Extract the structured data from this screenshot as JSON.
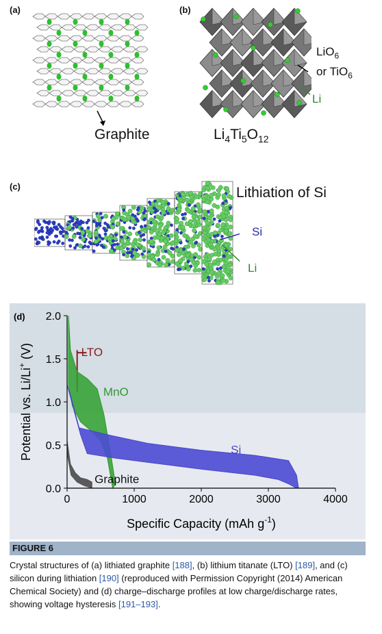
{
  "panel_a": {
    "label": "(a)",
    "name": "Graphite"
  },
  "panel_b": {
    "label": "(b)",
    "formula": {
      "li": "Li",
      "li_sub": "4",
      "ti": "Ti",
      "ti_sub": "5",
      "o": "O",
      "o_sub": "12"
    },
    "octa_label_1": "LiO",
    "octa_sub_1": "6",
    "octa_label_2": "or TiO",
    "octa_sub_2": "6",
    "li_label": "Li"
  },
  "panel_c": {
    "label": "(c)",
    "title": "Lithiation of Si",
    "si_label": "Si",
    "li_label": "Li"
  },
  "panel_d": {
    "label": "(d)"
  },
  "colors": {
    "lto": "#8b1a1a",
    "mno": "#2e9a2e",
    "si": "#4747c8",
    "graphite": "#555555",
    "plot_bg": "#c9d3de"
  },
  "chart_data": {
    "type": "area",
    "xlabel": "Specific Capacity (mAh g",
    "xlabel_sup": "-1",
    "xlabel_end": ")",
    "ylabel": "Potential vs. Li/Li",
    "ylabel_sup": "+",
    "ylabel_end": " (V)",
    "xlim": [
      0,
      4000
    ],
    "ylim": [
      0,
      2.0
    ],
    "xticks": [
      "0",
      "1000",
      "2000",
      "3000",
      "4000"
    ],
    "yticks": [
      "0.0",
      "0.5",
      "1.0",
      "1.5",
      "2.0"
    ],
    "series": [
      {
        "name": "Graphite",
        "upper": [
          [
            0,
            0.55
          ],
          [
            50,
            0.28
          ],
          [
            120,
            0.18
          ],
          [
            200,
            0.12
          ],
          [
            300,
            0.1
          ],
          [
            370,
            0.07
          ]
        ],
        "lower": [
          [
            0,
            0.4
          ],
          [
            60,
            0.15
          ],
          [
            150,
            0.07
          ],
          [
            250,
            0.03
          ],
          [
            370,
            0.0
          ]
        ]
      },
      {
        "name": "LTO",
        "upper": [
          [
            150,
            1.58
          ],
          [
            170,
            1.58
          ]
        ],
        "lower": [
          [
            150,
            1.55
          ],
          [
            170,
            1.55
          ]
        ]
      },
      {
        "name": "MnO",
        "upper": [
          [
            20,
            2.0
          ],
          [
            50,
            1.6
          ],
          [
            150,
            1.35
          ],
          [
            300,
            1.27
          ],
          [
            450,
            1.15
          ],
          [
            550,
            0.85
          ],
          [
            650,
            0.4
          ],
          [
            720,
            0.05
          ]
        ],
        "lower": [
          [
            20,
            1.2
          ],
          [
            80,
            0.95
          ],
          [
            200,
            0.77
          ],
          [
            350,
            0.67
          ],
          [
            500,
            0.55
          ],
          [
            600,
            0.35
          ],
          [
            680,
            0.0
          ]
        ]
      },
      {
        "name": "Si",
        "upper": [
          [
            0,
            1.2
          ],
          [
            60,
            1.05
          ],
          [
            180,
            0.7
          ],
          [
            600,
            0.62
          ],
          [
            1200,
            0.52
          ],
          [
            2000,
            0.44
          ],
          [
            2800,
            0.38
          ],
          [
            3300,
            0.32
          ],
          [
            3420,
            0.15
          ],
          [
            3450,
            0.0
          ]
        ],
        "lower": [
          [
            200,
            0.62
          ],
          [
            300,
            0.4
          ],
          [
            700,
            0.35
          ],
          [
            1200,
            0.3
          ],
          [
            2000,
            0.22
          ],
          [
            2800,
            0.15
          ],
          [
            3150,
            0.1
          ],
          [
            3300,
            0.05
          ],
          [
            3420,
            0.0
          ]
        ]
      }
    ],
    "annotations": [
      "LTO",
      "MnO",
      "Si",
      "Graphite"
    ]
  },
  "caption": {
    "heading": "FIGURE 6",
    "t1": "Crystal structures of (a) lithiated graphite ",
    "r1": "[188]",
    "t2": ", (b) lithium titanate (LTO) ",
    "r2": "[189]",
    "t3": ", and (c) silicon during lithiation ",
    "r3": "[190]",
    "t4": " (reproduced with Permission Copyright (2014) American Chemical Society) and (d) charge–discharge profiles at low charge/discharge rates, showing voltage hysteresis ",
    "r4": "[191–193]",
    "t5": "."
  }
}
